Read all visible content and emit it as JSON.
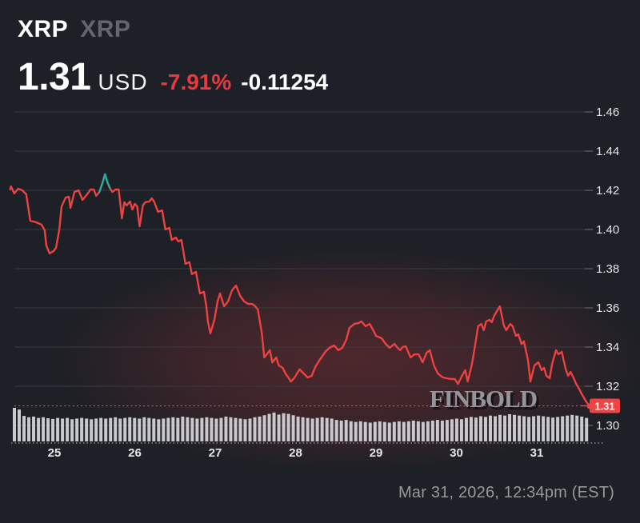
{
  "header": {
    "symbol": "XRP",
    "ticker": "XRP",
    "price": "1.31",
    "currency": "USD",
    "change_percent": "-7.91%",
    "change_absolute": "-0.11254"
  },
  "watermark": "FINBOLD",
  "footer": {
    "timestamp": "Mar 31, 2026, 12:34pm (EST)"
  },
  "colors": {
    "background": "#1d2026",
    "line_down": "#ee4141",
    "line_up": "#2aa89a",
    "price_badge": "#ef4444",
    "badge_text": "#ffffff",
    "grid": "#383b42",
    "tick": "#585b62",
    "axis_label": "#e5e6e8",
    "change_negative": "#e8393d",
    "muted_text": "#97989c",
    "volume_bar": "#d2d3d6",
    "glow": "#883034",
    "axis_dotted": "#bcbdc0"
  },
  "chart_data": {
    "type": "line",
    "title": "XRP/USD 7-day price chart",
    "xlabel": "",
    "ylabel": "",
    "x_ticks": [
      25,
      26,
      27,
      28,
      29,
      30,
      31
    ],
    "y_ticks": [
      1.46,
      1.44,
      1.42,
      1.4,
      1.38,
      1.36,
      1.34,
      1.32,
      1.3
    ],
    "xlim": [
      24.4,
      31.66
    ],
    "ylim": [
      1.295,
      1.465
    ],
    "legend": "off",
    "grid": "on",
    "current_price": 1.31,
    "current_price_label": "1.31",
    "up_segment_indices": [
      26,
      30
    ],
    "series": [
      {
        "name": "XRP/USD",
        "points": [
          [
            24.45,
            1.4204
          ],
          [
            24.46,
            1.422
          ],
          [
            24.5,
            1.4184
          ],
          [
            24.55,
            1.4208
          ],
          [
            24.6,
            1.42
          ],
          [
            24.65,
            1.418
          ],
          [
            24.7,
            1.4045
          ],
          [
            24.77,
            1.4037
          ],
          [
            24.84,
            1.4025
          ],
          [
            24.88,
            1.3996
          ],
          [
            24.9,
            1.3918
          ],
          [
            24.94,
            1.3878
          ],
          [
            24.99,
            1.389
          ],
          [
            25.02,
            1.3906
          ],
          [
            25.06,
            1.3996
          ],
          [
            25.09,
            1.4118
          ],
          [
            25.14,
            1.4163
          ],
          [
            25.18,
            1.4167
          ],
          [
            25.2,
            1.411
          ],
          [
            25.25,
            1.4192
          ],
          [
            25.3,
            1.42
          ],
          [
            25.35,
            1.4151
          ],
          [
            25.4,
            1.4176
          ],
          [
            25.45,
            1.4204
          ],
          [
            25.49,
            1.4204
          ],
          [
            25.52,
            1.4172
          ],
          [
            25.56,
            1.4192
          ],
          [
            25.6,
            1.4241
          ],
          [
            25.63,
            1.4282
          ],
          [
            25.66,
            1.4241
          ],
          [
            25.69,
            1.4212
          ],
          [
            25.72,
            1.4192
          ],
          [
            25.76,
            1.4204
          ],
          [
            25.8,
            1.4204
          ],
          [
            25.84,
            1.4057
          ],
          [
            25.87,
            1.4139
          ],
          [
            25.9,
            1.4123
          ],
          [
            25.94,
            1.4143
          ],
          [
            25.97,
            1.4102
          ],
          [
            26.0,
            1.4131
          ],
          [
            26.03,
            1.4118
          ],
          [
            26.06,
            1.4016
          ],
          [
            26.1,
            1.4123
          ],
          [
            26.13,
            1.4139
          ],
          [
            26.18,
            1.4143
          ],
          [
            26.21,
            1.4159
          ],
          [
            26.24,
            1.4143
          ],
          [
            26.29,
            1.409
          ],
          [
            26.34,
            1.4098
          ],
          [
            26.38,
            1.4
          ],
          [
            26.43,
            1.4008
          ],
          [
            26.46,
            1.3947
          ],
          [
            26.51,
            1.3959
          ],
          [
            26.54,
            1.3939
          ],
          [
            26.58,
            1.3947
          ],
          [
            26.63,
            1.3825
          ],
          [
            26.68,
            1.3833
          ],
          [
            26.71,
            1.3772
          ],
          [
            26.76,
            1.3784
          ],
          [
            26.81,
            1.3674
          ],
          [
            26.86,
            1.3682
          ],
          [
            26.89,
            1.3608
          ],
          [
            26.91,
            1.3527
          ],
          [
            26.94,
            1.347
          ],
          [
            26.99,
            1.3539
          ],
          [
            27.03,
            1.3633
          ],
          [
            27.06,
            1.3674
          ],
          [
            27.11,
            1.3608
          ],
          [
            27.16,
            1.3633
          ],
          [
            27.21,
            1.369
          ],
          [
            27.26,
            1.3714
          ],
          [
            27.31,
            1.3661
          ],
          [
            27.36,
            1.3633
          ],
          [
            27.41,
            1.362
          ],
          [
            27.46,
            1.362
          ],
          [
            27.49,
            1.3612
          ],
          [
            27.53,
            1.3592
          ],
          [
            27.58,
            1.347
          ],
          [
            27.61,
            1.3347
          ],
          [
            27.65,
            1.3367
          ],
          [
            27.68,
            1.3384
          ],
          [
            27.71,
            1.3322
          ],
          [
            27.76,
            1.3347
          ],
          [
            27.79,
            1.3306
          ],
          [
            27.84,
            1.3294
          ],
          [
            27.88,
            1.3261
          ],
          [
            27.91,
            1.3245
          ],
          [
            27.94,
            1.3224
          ],
          [
            27.98,
            1.3241
          ],
          [
            28.0,
            1.3253
          ],
          [
            28.05,
            1.3286
          ],
          [
            28.1,
            1.3265
          ],
          [
            28.15,
            1.3245
          ],
          [
            28.2,
            1.3253
          ],
          [
            28.25,
            1.3302
          ],
          [
            28.3,
            1.3335
          ],
          [
            28.37,
            1.3376
          ],
          [
            28.42,
            1.3396
          ],
          [
            28.48,
            1.3408
          ],
          [
            28.53,
            1.3384
          ],
          [
            28.58,
            1.3396
          ],
          [
            28.63,
            1.3437
          ],
          [
            28.67,
            1.3498
          ],
          [
            28.73,
            1.3518
          ],
          [
            28.78,
            1.3522
          ],
          [
            28.82,
            1.3531
          ],
          [
            28.87,
            1.3506
          ],
          [
            28.92,
            1.3518
          ],
          [
            28.96,
            1.349
          ],
          [
            29.0,
            1.3457
          ],
          [
            29.07,
            1.3445
          ],
          [
            29.12,
            1.3416
          ],
          [
            29.17,
            1.3396
          ],
          [
            29.23,
            1.3416
          ],
          [
            29.27,
            1.3396
          ],
          [
            29.3,
            1.3384
          ],
          [
            29.33,
            1.34
          ],
          [
            29.37,
            1.3404
          ],
          [
            29.43,
            1.3347
          ],
          [
            29.48,
            1.3363
          ],
          [
            29.53,
            1.3363
          ],
          [
            29.58,
            1.3322
          ],
          [
            29.63,
            1.3371
          ],
          [
            29.67,
            1.3384
          ],
          [
            29.72,
            1.3306
          ],
          [
            29.77,
            1.3265
          ],
          [
            29.83,
            1.3245
          ],
          [
            29.88,
            1.3241
          ],
          [
            29.93,
            1.3237
          ],
          [
            29.98,
            1.3237
          ],
          [
            30.02,
            1.3212
          ],
          [
            30.07,
            1.3253
          ],
          [
            30.11,
            1.3282
          ],
          [
            30.14,
            1.3224
          ],
          [
            30.19,
            1.3306
          ],
          [
            30.22,
            1.3376
          ],
          [
            30.27,
            1.3506
          ],
          [
            30.31,
            1.3518
          ],
          [
            30.34,
            1.3486
          ],
          [
            30.37,
            1.3531
          ],
          [
            30.41,
            1.3539
          ],
          [
            30.44,
            1.3527
          ],
          [
            30.47,
            1.3559
          ],
          [
            30.51,
            1.3588
          ],
          [
            30.54,
            1.3608
          ],
          [
            30.59,
            1.351
          ],
          [
            30.62,
            1.3486
          ],
          [
            30.67,
            1.3518
          ],
          [
            30.7,
            1.3506
          ],
          [
            30.74,
            1.3457
          ],
          [
            30.77,
            1.3465
          ],
          [
            30.81,
            1.3416
          ],
          [
            30.84,
            1.3429
          ],
          [
            30.89,
            1.3335
          ],
          [
            30.92,
            1.3224
          ],
          [
            30.97,
            1.3306
          ],
          [
            31.02,
            1.3322
          ],
          [
            31.06,
            1.3282
          ],
          [
            31.09,
            1.3294
          ],
          [
            31.12,
            1.3253
          ],
          [
            31.16,
            1.3241
          ],
          [
            31.19,
            1.3314
          ],
          [
            31.24,
            1.3384
          ],
          [
            31.27,
            1.3363
          ],
          [
            31.31,
            1.3376
          ],
          [
            31.36,
            1.3286
          ],
          [
            31.39,
            1.3253
          ],
          [
            31.42,
            1.3273
          ],
          [
            31.46,
            1.3241
          ],
          [
            31.49,
            1.3212
          ],
          [
            31.53,
            1.3184
          ],
          [
            31.56,
            1.3159
          ],
          [
            31.62,
            1.3118
          ],
          [
            31.66,
            1.3098
          ]
        ]
      }
    ],
    "volume_relative": [
      1.0,
      0.95,
      0.76,
      0.72,
      0.74,
      0.7,
      0.72,
      0.69,
      0.67,
      0.7,
      0.68,
      0.7,
      0.66,
      0.68,
      0.7,
      0.68,
      0.66,
      0.68,
      0.7,
      0.68,
      0.7,
      0.72,
      0.68,
      0.7,
      0.72,
      0.7,
      0.68,
      0.72,
      0.7,
      0.68,
      0.66,
      0.68,
      0.7,
      0.72,
      0.7,
      0.74,
      0.72,
      0.7,
      0.68,
      0.7,
      0.72,
      0.7,
      0.68,
      0.7,
      0.74,
      0.72,
      0.7,
      0.68,
      0.66,
      0.68,
      0.72,
      0.74,
      0.78,
      0.82,
      0.86,
      0.8,
      0.84,
      0.82,
      0.78,
      0.74,
      0.72,
      0.7,
      0.68,
      0.7,
      0.72,
      0.7,
      0.68,
      0.64,
      0.62,
      0.64,
      0.6,
      0.58,
      0.6,
      0.58,
      0.56,
      0.58,
      0.6,
      0.58,
      0.56,
      0.58,
      0.6,
      0.58,
      0.6,
      0.62,
      0.6,
      0.58,
      0.6,
      0.62,
      0.64,
      0.62,
      0.64,
      0.66,
      0.68,
      0.66,
      0.7,
      0.73,
      0.71,
      0.75,
      0.73,
      0.77,
      0.75,
      0.79,
      0.77,
      0.81,
      0.79,
      0.77,
      0.75,
      0.73,
      0.75,
      0.77,
      0.75,
      0.73,
      0.71,
      0.73,
      0.75,
      0.77,
      0.79,
      0.77,
      0.74,
      0.7
    ]
  }
}
